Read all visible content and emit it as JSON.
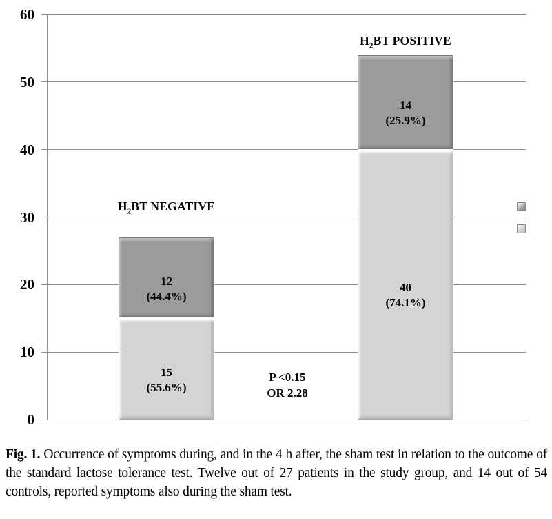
{
  "chart_data": {
    "type": "bar",
    "stacked": true,
    "categories": [
      "H2BT NEGATIVE",
      "H2BT POSITIVE"
    ],
    "category_display": [
      {
        "pre": "H",
        "sub": "2",
        "post": "BT NEGATIVE"
      },
      {
        "pre": "H",
        "sub": "2",
        "post": "BT POSITIVE"
      }
    ],
    "series": [
      {
        "name": "light-gray segment (bottom)",
        "color": "#d4d4d4",
        "values": [
          15,
          40
        ],
        "labels": [
          {
            "value": "15",
            "percent": "(55.6%)"
          },
          {
            "value": "40",
            "percent": "(74.1%)"
          }
        ]
      },
      {
        "name": "dark-gray segment (top)",
        "color": "#9b9b9b",
        "values": [
          12,
          14
        ],
        "labels": [
          {
            "value": "12",
            "percent": "(44.4%)"
          },
          {
            "value": "14",
            "percent": "(25.9%)"
          }
        ]
      }
    ],
    "totals": [
      27,
      54
    ],
    "annotation": {
      "lines": [
        "P <0.15",
        "OR 2.28"
      ]
    },
    "y_axis": {
      "min": 0,
      "max": 60,
      "tick_interval": 10,
      "ticks": [
        0,
        10,
        20,
        30,
        40,
        50,
        60
      ]
    },
    "grid": true,
    "legend": {
      "position": "right-edge-cropped",
      "swatches": [
        "#9a9a9a",
        "#c6c6c6"
      ]
    }
  },
  "caption": {
    "label": "Fig. 1.",
    "text": "Occurrence of symptoms during, and in the 4 h after, the sham test in relation to the outcome of the standard lactose tolerance test. Twelve out of 27 patients in the study group, and 14 out of 54 controls, reported symptoms also during the sham test."
  }
}
